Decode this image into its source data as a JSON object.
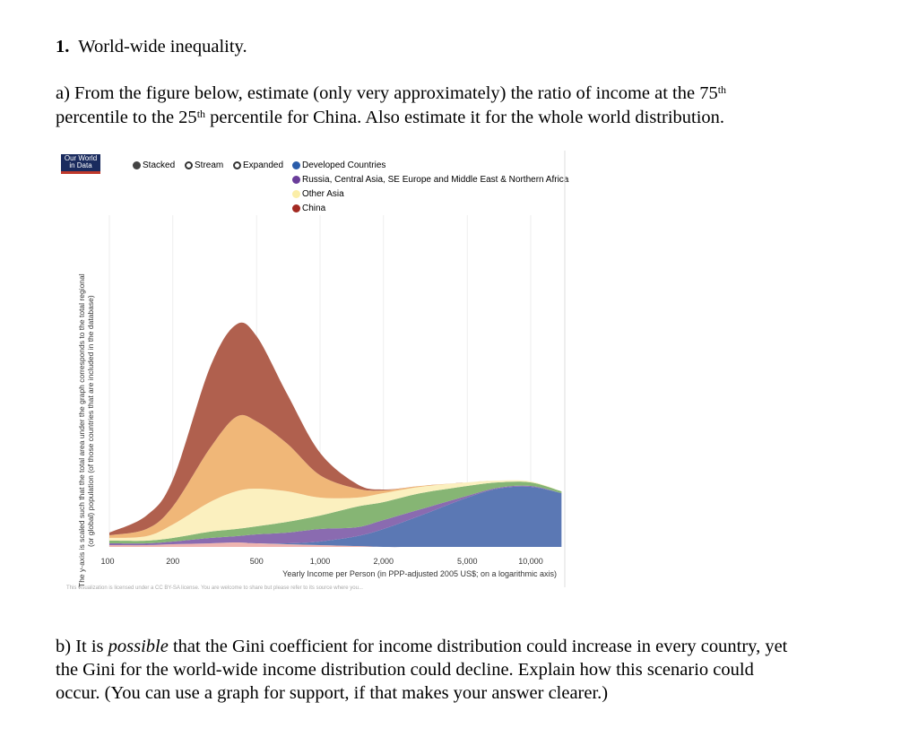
{
  "question": {
    "number": "1.",
    "title": "World-wide inequality.",
    "part_a": {
      "l1_pre": "a)  From the figure below, estimate (only very approximately) the ratio of income at the 75",
      "sup1": "th",
      "l2_pre": "percentile to the 25",
      "sup2": "th",
      "l2_post": " percentile for China.  Also estimate it for the whole world distribution."
    },
    "part_b": {
      "l1_pre": "b)  It is ",
      "l1_em": "possible",
      "l1_post": " that the Gini coefficient for income distribution could increase in every country, yet",
      "l2": "the Gini for the world-wide income distribution could decline.  Explain how this scenario could",
      "l3": "occur.  (You can use a graph for support, if that makes your answer clearer.)"
    }
  },
  "chart_controls": {
    "logo": "Our World in Data",
    "modes": [
      {
        "label": "Stacked",
        "selected": true
      },
      {
        "label": "Stream",
        "selected": false
      },
      {
        "label": "Expanded",
        "selected": false
      }
    ]
  },
  "chart_data": {
    "type": "area",
    "stacked": true,
    "title": "",
    "xlabel": "Yearly Income per Person (in PPP-adjusted 2005 US$; on a logarithmic axis)",
    "ylabel": "The y-axis is scaled such that the total area under the graph corresponds to the total regional (or global) population (of those countries that are included in the database)",
    "ylabel_l1": "The y-axis is scaled such that the total area under the graph corresponds to the total regional",
    "ylabel_l2": "(or global) population (of those countries that are included in the database)",
    "xscale": "log",
    "xlim": [
      100,
      14000
    ],
    "ylim": [
      0,
      26
    ],
    "xticks": [
      {
        "v": 100,
        "label": "100"
      },
      {
        "v": 200,
        "label": "200"
      },
      {
        "v": 500,
        "label": "500"
      },
      {
        "v": 1000,
        "label": "1,000"
      },
      {
        "v": 2000,
        "label": "2,000"
      },
      {
        "v": 5000,
        "label": "5,000"
      },
      {
        "v": 10000,
        "label": "10,000"
      }
    ],
    "x": [
      100,
      150,
      200,
      300,
      400,
      500,
      700,
      1000,
      1500,
      2000,
      3000,
      5000,
      7000,
      10000,
      14000
    ],
    "series": [
      {
        "name": "",
        "color": "#eeb4b0",
        "values": [
          0.2,
          0.2,
          0.3,
          0.4,
          0.5,
          0.4,
          0.3,
          0.2,
          0.1,
          0,
          0,
          0,
          0,
          0,
          0
        ]
      },
      {
        "name": "Developed Countries",
        "color": "#5b78b4",
        "values": [
          0,
          0,
          0,
          0,
          0,
          0,
          0.1,
          0.4,
          1.1,
          2.0,
          3.5,
          5.5,
          6.5,
          6.7,
          6.0
        ]
      },
      {
        "name": "Russia, Central Asia, SE Europe and Middle East & Northern Africa",
        "color": "#8a6bb0",
        "values": [
          0.2,
          0.2,
          0.3,
          0.6,
          0.7,
          1.0,
          1.2,
          1.4,
          1.0,
          1.0,
          0.7,
          0.2,
          0.1,
          0.1,
          0
        ]
      },
      {
        "name": "",
        "color": "#86b574",
        "values": [
          0.3,
          0.3,
          0.4,
          0.7,
          0.8,
          0.9,
          1.2,
          1.5,
          2.3,
          2.0,
          1.8,
          1.1,
          0.6,
          0.4,
          0.2
        ]
      },
      {
        "name": "Other Asia",
        "color": "#fbf0bf",
        "values": [
          0.3,
          0.5,
          1.5,
          3.3,
          4.2,
          4.2,
          3.4,
          2.0,
          1.0,
          1.0,
          0.7,
          0.4,
          0.2,
          0.1,
          0
        ]
      },
      {
        "name": "",
        "color": "#f0b778",
        "values": [
          0.3,
          0.8,
          2.0,
          6.0,
          8.3,
          7.5,
          5.3,
          2.5,
          1.0,
          0.3,
          0.1,
          0,
          0,
          0,
          0
        ]
      },
      {
        "name": "China",
        "color": "#b0604e",
        "values": [
          0.3,
          1.5,
          3.0,
          9.0,
          10.3,
          9.5,
          5.5,
          2.5,
          0.5,
          0.1,
          0,
          0,
          0,
          0,
          0
        ]
      }
    ],
    "legend": [
      {
        "label": "Developed Countries",
        "color": "#2a5caa"
      },
      {
        "label": "Russia, Central Asia, SE Europe and Middle East & Northern Africa",
        "color": "#6a3d9a"
      },
      {
        "label": "Other Asia",
        "color": "#fbeea8"
      },
      {
        "label": "China",
        "color": "#a32a22"
      }
    ],
    "legend_placement": "top",
    "footer": "This visualization is licensed under a CC BY-SA license. You are welcome to share but please refer to its source where you..."
  }
}
